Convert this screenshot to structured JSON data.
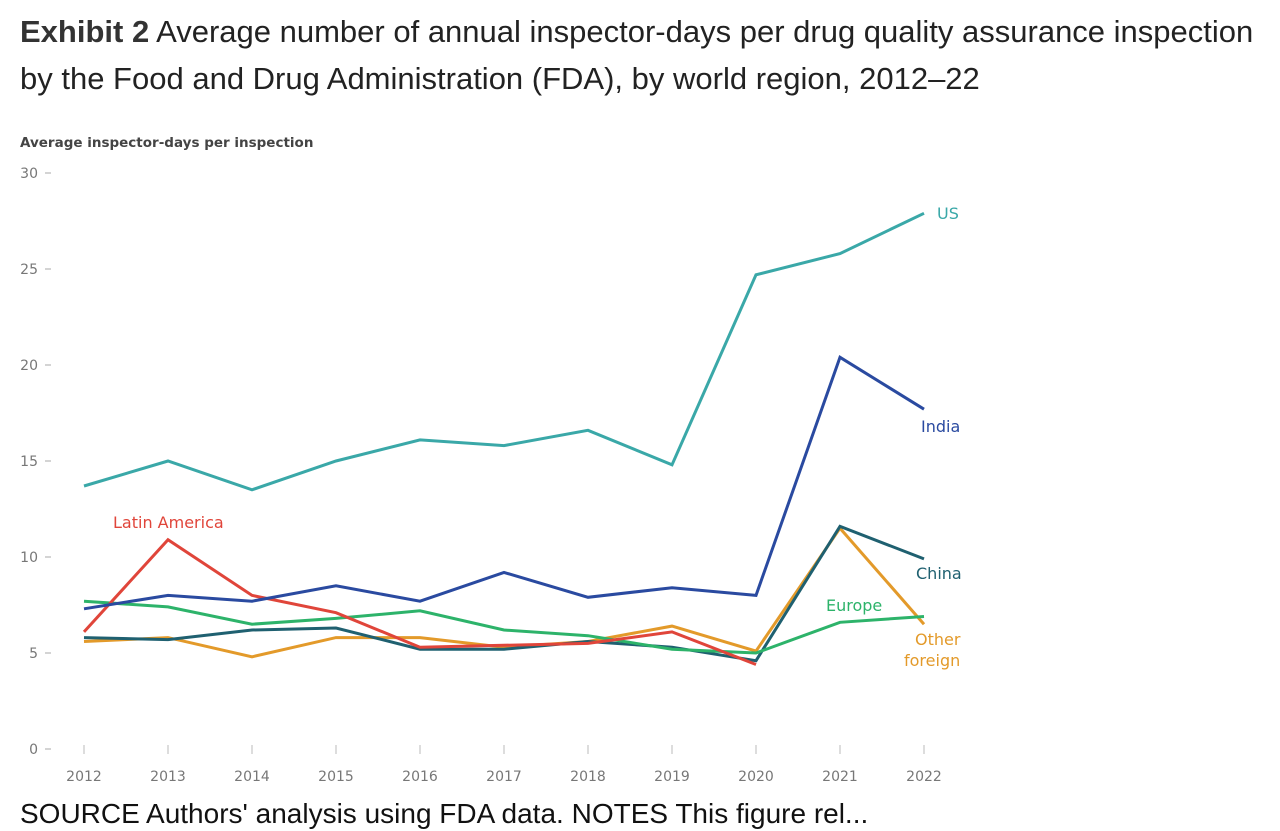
{
  "header": {
    "exhibit": "Exhibit 2",
    "title": "Average number of annual inspector-days per drug quality assurance inspection by the Food and Drug Administration (FDA), by world region, 2012–22"
  },
  "footer": {
    "text": "SOURCE Authors' analysis using FDA data. NOTES This figure rel..."
  },
  "chart_data": {
    "type": "line",
    "title": "Average number of annual inspector-days per drug quality assurance inspection by the Food and Drug Administration (FDA), by world region, 2012–22",
    "xlabel": "",
    "ylabel": "Average inspector-days per inspection",
    "ylim": [
      0,
      30
    ],
    "yticks": [
      0,
      5,
      10,
      15,
      20,
      25,
      30
    ],
    "grid": false,
    "legend": "inline labels at line ends",
    "x": [
      "2012",
      "2013",
      "2014",
      "2015",
      "2016",
      "2017",
      "2018",
      "2019",
      "2020",
      "2021",
      "2022"
    ],
    "series": [
      {
        "name": "US",
        "color": "#3aa8a8",
        "values": [
          13.7,
          15.0,
          13.5,
          15.0,
          16.1,
          15.8,
          16.6,
          14.8,
          24.7,
          25.8,
          27.9
        ]
      },
      {
        "name": "India",
        "color": "#2a4aa0",
        "values": [
          7.3,
          8.0,
          7.7,
          8.5,
          7.7,
          9.2,
          7.9,
          8.4,
          8.0,
          20.4,
          17.7
        ]
      },
      {
        "name": "Latin America",
        "color": "#e0453a",
        "values": [
          6.1,
          10.9,
          8.0,
          7.1,
          5.3,
          5.4,
          5.5,
          6.1,
          4.4,
          null,
          null
        ]
      },
      {
        "name": "Europe",
        "color": "#2db36a",
        "values": [
          7.7,
          7.4,
          6.5,
          6.8,
          7.2,
          6.2,
          5.9,
          5.2,
          5.0,
          6.6,
          6.9
        ]
      },
      {
        "name": "China",
        "color": "#1f6070",
        "values": [
          5.8,
          5.7,
          6.2,
          6.3,
          5.2,
          5.2,
          5.6,
          5.3,
          4.6,
          11.6,
          9.9
        ]
      },
      {
        "name": "Other foreign",
        "color": "#e39a2a",
        "values": [
          5.6,
          5.8,
          4.8,
          5.8,
          5.8,
          5.3,
          5.6,
          6.4,
          5.1,
          11.5,
          6.5
        ]
      }
    ],
    "labels": [
      {
        "text": "US",
        "series": "US"
      },
      {
        "text": "India",
        "series": "India"
      },
      {
        "text": "Latin America",
        "series": "Latin America"
      },
      {
        "text": "China",
        "series": "China"
      },
      {
        "text": "Europe",
        "series": "Europe"
      },
      {
        "text": "Other",
        "series": "Other foreign"
      },
      {
        "text": "foreign",
        "series": "Other foreign"
      }
    ]
  }
}
